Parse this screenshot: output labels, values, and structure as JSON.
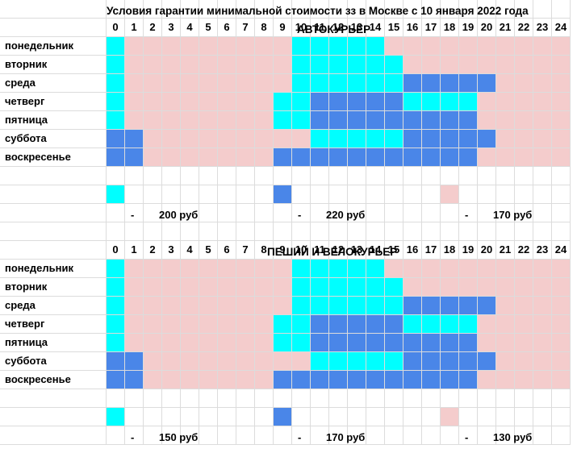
{
  "title": "Условия гарантии минимальной стоимости зз в Москве с 10 января 2022 года",
  "colors": {
    "cyan": "#00ffff",
    "blue": "#4a86e8",
    "pink": "#f4cccc"
  },
  "hours": [
    "0",
    "1",
    "2",
    "3",
    "4",
    "5",
    "6",
    "7",
    "8",
    "9",
    "10",
    "11",
    "12",
    "13",
    "14",
    "15",
    "16",
    "17",
    "18",
    "19",
    "20",
    "21",
    "22",
    "23",
    "24"
  ],
  "days": [
    "понедельник",
    "вторник",
    "среда",
    "четверг",
    "пятница",
    "суббота",
    "воскресенье"
  ],
  "schedule_legend": {
    "C": "cyan",
    "B": "blue",
    "P": "pink"
  },
  "schedule": [
    "CPPPPPPPPPCCCCCPPPPPPPPPP",
    "CPPPPPPPPPCCCCCCPPPPPPPPP",
    "CPPPPPPPPPCCCCCCBBBBBPPPP",
    "CPPPPPPPPCCBBBBBCCCCPPPPP",
    "CPPPPPPPPCCBBBBBBBBBPPPPP",
    "BBPPPPPPPPPCCCCCBBBBBPPPP",
    "BBPPPPPPPBBBBBBBBBBBPPPPP"
  ],
  "sections": [
    {
      "name": "АВТОКУРЬЕР",
      "legend": [
        {
          "color": "cyan",
          "dash": "-",
          "price": "200 руб"
        },
        {
          "color": "blue",
          "dash": "-",
          "price": "220 руб"
        },
        {
          "color": "pink",
          "dash": "-",
          "price": "170 руб"
        }
      ]
    },
    {
      "name": "ПЕШИЙ И ВЕЛОКУРЬЕР",
      "legend": [
        {
          "color": "cyan",
          "dash": "-",
          "price": "150 руб"
        },
        {
          "color": "blue",
          "dash": "-",
          "price": "170 руб"
        },
        {
          "color": "pink",
          "dash": "-",
          "price": "130 руб"
        }
      ]
    }
  ]
}
